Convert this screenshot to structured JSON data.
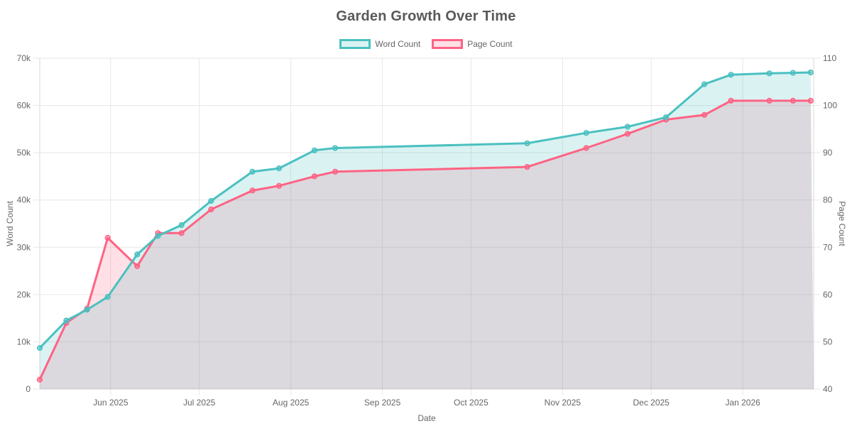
{
  "chart_data": {
    "type": "line",
    "title": "Garden Growth Over Time",
    "legend_position": "top",
    "grid": true,
    "area_fill": true,
    "x": [
      "2025-05-08",
      "2025-05-17",
      "2025-05-24",
      "2025-05-31",
      "2025-06-10",
      "2025-06-17",
      "2025-06-25",
      "2025-07-05",
      "2025-07-19",
      "2025-07-28",
      "2025-08-09",
      "2025-08-16",
      "2025-10-20",
      "2025-11-09",
      "2025-11-23",
      "2025-12-06",
      "2025-12-19",
      "2025-12-28",
      "2026-01-10",
      "2026-01-18",
      "2026-01-24"
    ],
    "series": [
      {
        "name": "Word Count",
        "yaxis": "left",
        "color": "#4BC0C0",
        "fill_color": "rgba(75,192,192,0.2)",
        "values": [
          8700,
          14500,
          16800,
          19500,
          28500,
          32400,
          34700,
          39800,
          46000,
          46700,
          50500,
          51000,
          52000,
          54200,
          55500,
          57500,
          64500,
          66500,
          66800,
          66900,
          67000
        ]
      },
      {
        "name": "Page Count",
        "yaxis": "right",
        "color": "#FF6384",
        "fill_color": "rgba(255,99,132,0.2)",
        "values": [
          42,
          54,
          57,
          72,
          66,
          73,
          73,
          78,
          82,
          83,
          85,
          86,
          87,
          91,
          94,
          97,
          98,
          101,
          101,
          101,
          101
        ]
      }
    ],
    "x_axis": {
      "label": "Date",
      "range": [
        "2025-05-08",
        "2026-01-25"
      ],
      "tick_dates": [
        "2025-06-01",
        "2025-07-01",
        "2025-08-01",
        "2025-09-01",
        "2025-10-01",
        "2025-11-01",
        "2025-12-01",
        "2026-01-01"
      ],
      "tick_labels": [
        "Jun 2025",
        "Jul 2025",
        "Aug 2025",
        "Sep 2025",
        "Oct 2025",
        "Nov 2025",
        "Dec 2025",
        "Jan 2026"
      ]
    },
    "y_left": {
      "label": "Word Count",
      "min": 0,
      "max": 70000,
      "tick_values": [
        0,
        10000,
        20000,
        30000,
        40000,
        50000,
        60000,
        70000
      ],
      "tick_labels": [
        "0",
        "10k",
        "20k",
        "30k",
        "40k",
        "50k",
        "60k",
        "70k"
      ]
    },
    "y_right": {
      "label": "Page Count",
      "min": 40,
      "max": 110,
      "tick_values": [
        40,
        50,
        60,
        70,
        80,
        90,
        100,
        110
      ],
      "tick_labels": [
        "40",
        "50",
        "60",
        "70",
        "80",
        "90",
        "100",
        "110"
      ]
    }
  },
  "colors": {
    "grid": "#e7e7e7",
    "axis_border": "#d9d9d9",
    "tick_text": "#666666"
  }
}
